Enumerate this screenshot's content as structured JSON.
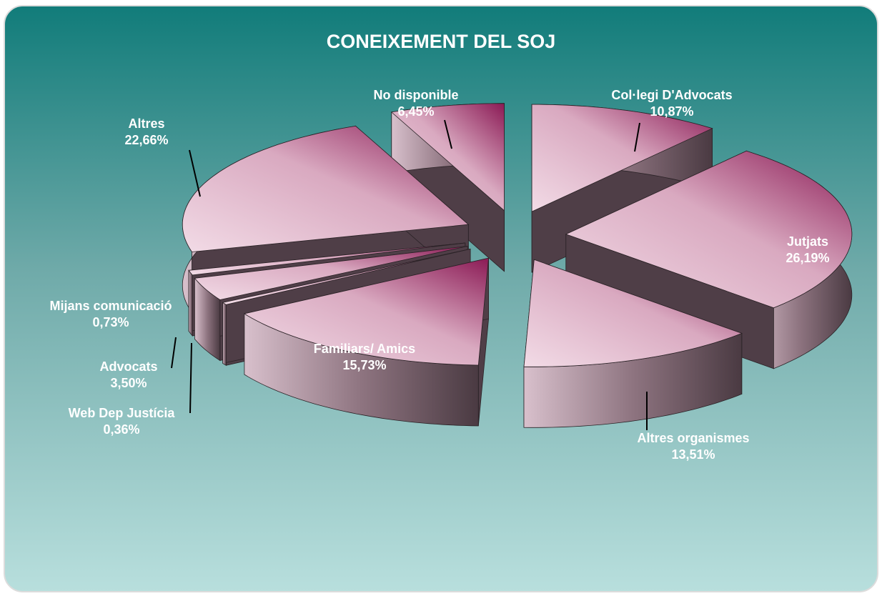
{
  "chart_data": {
    "type": "pie",
    "title": "CONEIXEMENT DEL SOJ",
    "categories": [
      "Col·legi D'Advocats",
      "Jutjats",
      "Altres organismes",
      "Familiars/ Amics",
      "Web Dep Justícia",
      "Advocats",
      "Mijans comunicació",
      "Altres",
      "No disponible"
    ],
    "values": [
      10.87,
      26.19,
      13.51,
      15.73,
      0.36,
      3.5,
      0.73,
      22.66,
      6.45
    ],
    "value_labels": [
      "10,87%",
      "26,19%",
      "13,51%",
      "15,73%",
      "0,36%",
      "3,50%",
      "0,73%",
      "22,66%",
      "6,45%"
    ],
    "color": "#8b1a55"
  }
}
